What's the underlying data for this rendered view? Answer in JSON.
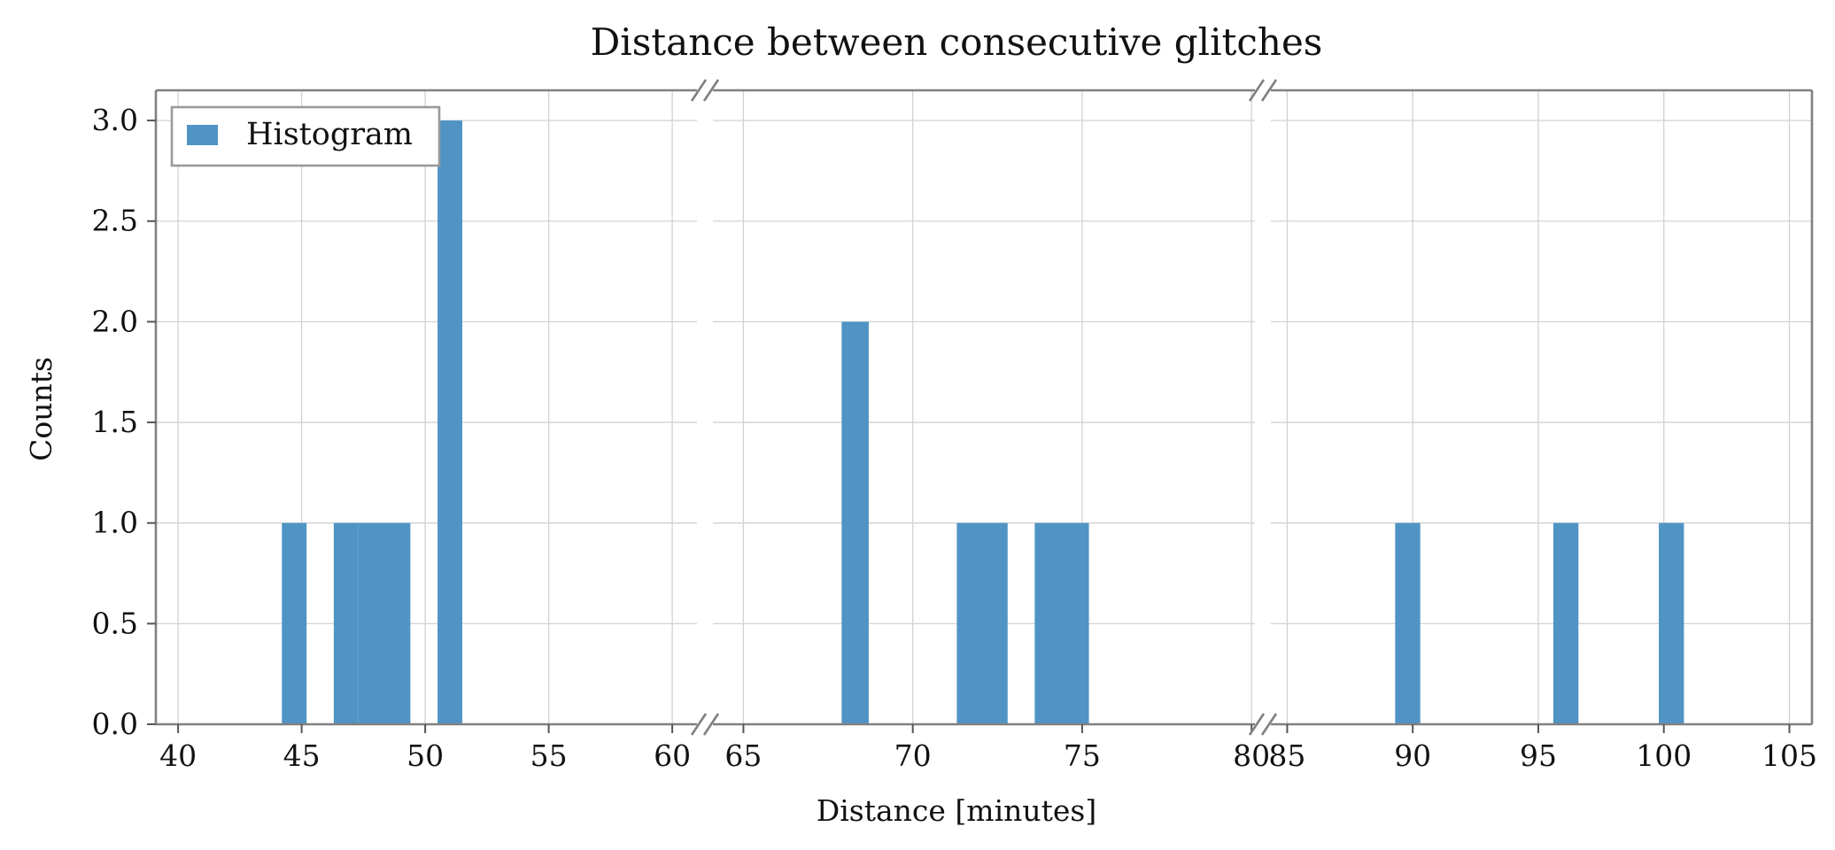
{
  "chart_data": {
    "type": "bar",
    "title": "Distance between consecutive glitches",
    "xlabel": "Distance [minutes]",
    "ylabel": "Counts",
    "ylim": [
      0,
      3.15
    ],
    "yticks": [
      0.0,
      0.5,
      1.0,
      1.5,
      2.0,
      2.5,
      3.0
    ],
    "ytick_labels": [
      "0.0",
      "0.5",
      "1.0",
      "1.5",
      "2.0",
      "2.5",
      "3.0"
    ],
    "grid": true,
    "broken_x_axis": true,
    "bar_color": "#4f94c4",
    "legend": {
      "placement": "upper-left",
      "entries": [
        "Histogram"
      ]
    },
    "panels": [
      {
        "xlim": [
          39.1,
          61.0
        ],
        "xticks": [
          40,
          45,
          50,
          55,
          60
        ],
        "xtick_labels": [
          "40",
          "45",
          "50",
          "55",
          "60"
        ],
        "bars": [
          {
            "x0": 44.2,
            "x1": 45.2,
            "count": 1
          },
          {
            "x0": 46.3,
            "x1": 47.3,
            "count": 1
          },
          {
            "x0": 47.3,
            "x1": 48.4,
            "count": 1
          },
          {
            "x0": 48.4,
            "x1": 49.4,
            "count": 1
          },
          {
            "x0": 50.5,
            "x1": 51.5,
            "count": 3
          }
        ]
      },
      {
        "xlim": [
          64.1,
          80.1
        ],
        "xticks": [
          65,
          70,
          75,
          80
        ],
        "xtick_labels": [
          "65",
          "70",
          "75",
          "80"
        ],
        "bars": [
          {
            "x0": 67.9,
            "x1": 68.7,
            "count": 2
          },
          {
            "x0": 71.3,
            "x1": 72.1,
            "count": 1
          },
          {
            "x0": 72.1,
            "x1": 72.8,
            "count": 1
          },
          {
            "x0": 73.6,
            "x1": 74.4,
            "count": 1
          },
          {
            "x0": 74.4,
            "x1": 75.2,
            "count": 1
          }
        ]
      },
      {
        "xlim": [
          84.35,
          105.9
        ],
        "xticks": [
          85,
          90,
          95,
          100,
          105
        ],
        "xtick_labels": [
          "85",
          "90",
          "95",
          "100",
          "105"
        ],
        "bars": [
          {
            "x0": 89.3,
            "x1": 90.3,
            "count": 1
          },
          {
            "x0": 95.6,
            "x1": 96.6,
            "count": 1
          },
          {
            "x0": 99.8,
            "x1": 100.8,
            "count": 1
          }
        ]
      }
    ]
  }
}
